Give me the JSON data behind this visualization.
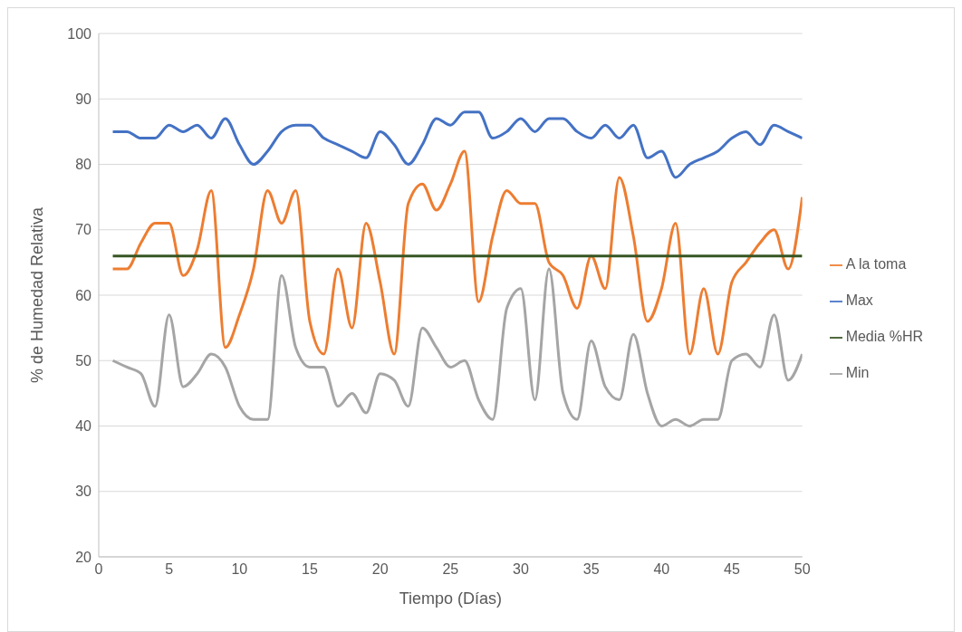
{
  "chart_data": {
    "type": "line",
    "xlabel": "Tiempo (Días)",
    "ylabel": "% de Humedad Relativa",
    "x": [
      1,
      2,
      3,
      4,
      5,
      6,
      7,
      8,
      9,
      10,
      11,
      12,
      13,
      14,
      15,
      16,
      17,
      18,
      19,
      20,
      21,
      22,
      23,
      24,
      25,
      26,
      27,
      28,
      29,
      30,
      31,
      32,
      33,
      34,
      35,
      36,
      37,
      38,
      39,
      40,
      41,
      42,
      43,
      44,
      45,
      46,
      47,
      48,
      49,
      50
    ],
    "series": [
      {
        "name": "Max",
        "color": "#4472c4",
        "values": [
          85,
          85,
          84,
          84,
          86,
          85,
          86,
          84,
          87,
          83,
          80,
          82,
          85,
          86,
          86,
          84,
          83,
          82,
          81,
          85,
          83,
          80,
          83,
          87,
          86,
          88,
          88,
          84,
          85,
          87,
          85,
          87,
          87,
          85,
          84,
          86,
          84,
          86,
          81,
          82,
          78,
          80,
          81,
          82,
          84,
          85,
          83,
          86,
          85,
          84
        ]
      },
      {
        "name": "A la toma",
        "color": "#ed7d31",
        "values": [
          64,
          64,
          68,
          71,
          71,
          63,
          67,
          76,
          52,
          57,
          64,
          76,
          71,
          76,
          56,
          51,
          64,
          55,
          71,
          62,
          51,
          74,
          77,
          73,
          77,
          82,
          59,
          69,
          76,
          74,
          74,
          65,
          63,
          58,
          66,
          61,
          78,
          69,
          56,
          61,
          71,
          51,
          61,
          51,
          62,
          65,
          68,
          70,
          64,
          75
        ]
      },
      {
        "name": "Min",
        "color": "#a5a5a5",
        "values": [
          50,
          49,
          48,
          43,
          57,
          46,
          48,
          51,
          49,
          43,
          41,
          41,
          63,
          52,
          49,
          49,
          43,
          45,
          42,
          48,
          47,
          43,
          55,
          52,
          49,
          50,
          44,
          41,
          58,
          61,
          44,
          64,
          45,
          41,
          53,
          46,
          44,
          54,
          45,
          40,
          41,
          40,
          41,
          41,
          50,
          51,
          49,
          57,
          47,
          51
        ]
      },
      {
        "name": "Media %HR",
        "color": "#375623",
        "values": [
          66,
          66,
          66,
          66,
          66,
          66,
          66,
          66,
          66,
          66,
          66,
          66,
          66,
          66,
          66,
          66,
          66,
          66,
          66,
          66,
          66,
          66,
          66,
          66,
          66,
          66,
          66,
          66,
          66,
          66,
          66,
          66,
          66,
          66,
          66,
          66,
          66,
          66,
          66,
          66,
          66,
          66,
          66,
          66,
          66,
          66,
          66,
          66,
          66,
          66
        ]
      }
    ],
    "xlim": [
      0,
      50
    ],
    "xticks": [
      0,
      5,
      10,
      15,
      20,
      25,
      30,
      35,
      40,
      45,
      50
    ],
    "ylim": [
      20,
      100
    ],
    "yticks": [
      20,
      30,
      40,
      50,
      60,
      70,
      80,
      90,
      100
    ],
    "grid": "y",
    "legend": "right",
    "marker": "none",
    "line_style": "solid"
  }
}
